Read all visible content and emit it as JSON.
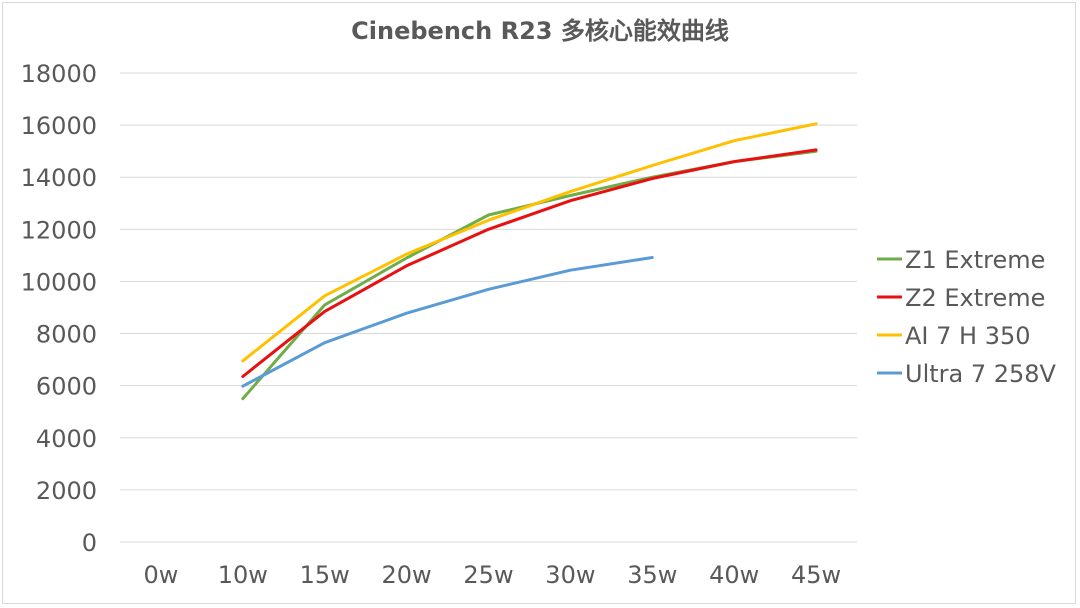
{
  "chart_data": {
    "type": "line",
    "title": "Cinebench R23 多核心能效曲线",
    "xlabel": "",
    "ylabel": "",
    "categories": [
      "0w",
      "10w",
      "15w",
      "20w",
      "25w",
      "30w",
      "35w",
      "40w",
      "45w"
    ],
    "ylim": [
      0,
      18000
    ],
    "yticks": [
      0,
      2000,
      4000,
      6000,
      8000,
      10000,
      12000,
      14000,
      16000,
      18000
    ],
    "grid": true,
    "legend_position": "right",
    "series": [
      {
        "name": "Z1 Extreme",
        "color": "#70ad47",
        "values": [
          null,
          5500,
          9100,
          10900,
          12550,
          13300,
          14000,
          14600,
          15000
        ]
      },
      {
        "name": "Z2 Extreme",
        "color": "#e81010",
        "values": [
          null,
          6350,
          8850,
          10600,
          12000,
          13100,
          13950,
          14600,
          15050
        ]
      },
      {
        "name": "AI 7 H 350",
        "color": "#ffc000",
        "values": [
          null,
          6950,
          9450,
          11050,
          12350,
          13450,
          14450,
          15400,
          16050
        ]
      },
      {
        "name": "Ultra 7 258V",
        "color": "#5b9bd5",
        "values": [
          null,
          5980,
          7650,
          8780,
          9700,
          10430,
          10920,
          null,
          null
        ]
      }
    ]
  }
}
